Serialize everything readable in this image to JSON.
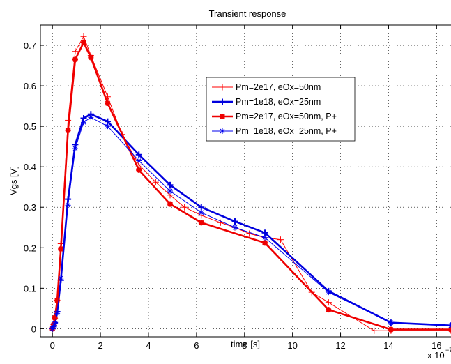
{
  "chart_data": {
    "type": "line",
    "title": "Transient response",
    "xlabel": "time [s]",
    "ylabel": "Vgs [V]",
    "x_multiplier_label": "x 10",
    "x_multiplier_exponent": "−7",
    "xlim": [
      -0.5,
      16.6
    ],
    "ylim": [
      -0.02,
      0.75
    ],
    "xticks": [
      0,
      2,
      4,
      6,
      8,
      10,
      12,
      14,
      16
    ],
    "yticks": [
      0,
      0.1,
      0.2,
      0.3,
      0.4,
      0.5,
      0.6,
      0.7
    ],
    "grid": true,
    "legend_position": "upper-right",
    "series": [
      {
        "name": "Pm=2e17, eOx=50nm",
        "color": "#ff0000",
        "marker": "plus",
        "line": "thin",
        "x": [
          0,
          0.05,
          0.1,
          0.2,
          0.35,
          0.65,
          0.95,
          1.3,
          1.6,
          2.3,
          2.9,
          3.6,
          4.3,
          4.9,
          5.5,
          6.2,
          7,
          7.6,
          8.2,
          8.85,
          9.5,
          10.8,
          11.5,
          13.4,
          14.1,
          16.6
        ],
        "y": [
          0,
          0.01,
          0.025,
          0.07,
          0.21,
          0.515,
          0.685,
          0.722,
          0.675,
          0.573,
          0.48,
          0.405,
          0.362,
          0.33,
          0.3,
          0.28,
          0.262,
          0.25,
          0.235,
          0.225,
          0.22,
          0.09,
          0.065,
          -0.005,
          -0.005,
          -0.005
        ]
      },
      {
        "name": "Pm=1e18, eOx=25nm",
        "color": "#0000dd",
        "marker": "plus",
        "line": "thick",
        "x": [
          0,
          0.05,
          0.1,
          0.2,
          0.35,
          0.65,
          0.95,
          1.3,
          1.6,
          2.3,
          3.6,
          4.9,
          6.2,
          7.6,
          8.85,
          11.5,
          14.1,
          16.6
        ],
        "y": [
          0,
          0.005,
          0.015,
          0.042,
          0.12,
          0.32,
          0.455,
          0.52,
          0.53,
          0.512,
          0.43,
          0.355,
          0.3,
          0.265,
          0.237,
          0.093,
          0.015,
          0.008
        ]
      },
      {
        "name": "Pm=2e17, eOx=50nm, P+",
        "color": "#ee0000",
        "marker": "star",
        "line": "thick",
        "x": [
          0,
          0.05,
          0.1,
          0.2,
          0.35,
          0.65,
          0.95,
          1.3,
          1.6,
          2.3,
          3.6,
          4.9,
          6.2,
          8.85,
          11.5,
          14.1,
          16.6
        ],
        "y": [
          0,
          0.01,
          0.027,
          0.07,
          0.197,
          0.49,
          0.665,
          0.707,
          0.67,
          0.557,
          0.392,
          0.308,
          0.262,
          0.212,
          0.047,
          -0.002,
          -0.002
        ]
      },
      {
        "name": "Pm=1e18, eOx=25nm, P+",
        "color": "#0000ee",
        "marker": "star",
        "line": "thin",
        "x": [
          0,
          0.05,
          0.1,
          0.2,
          0.35,
          0.65,
          0.95,
          1.3,
          1.6,
          2.3,
          3.6,
          4.9,
          6.2,
          7.6,
          8.85,
          11.5,
          14.1,
          16.6
        ],
        "y": [
          0,
          0.005,
          0.013,
          0.038,
          0.125,
          0.305,
          0.445,
          0.51,
          0.522,
          0.5,
          0.415,
          0.34,
          0.287,
          0.25,
          0.225,
          0.09,
          0.015,
          0.008
        ]
      }
    ]
  }
}
